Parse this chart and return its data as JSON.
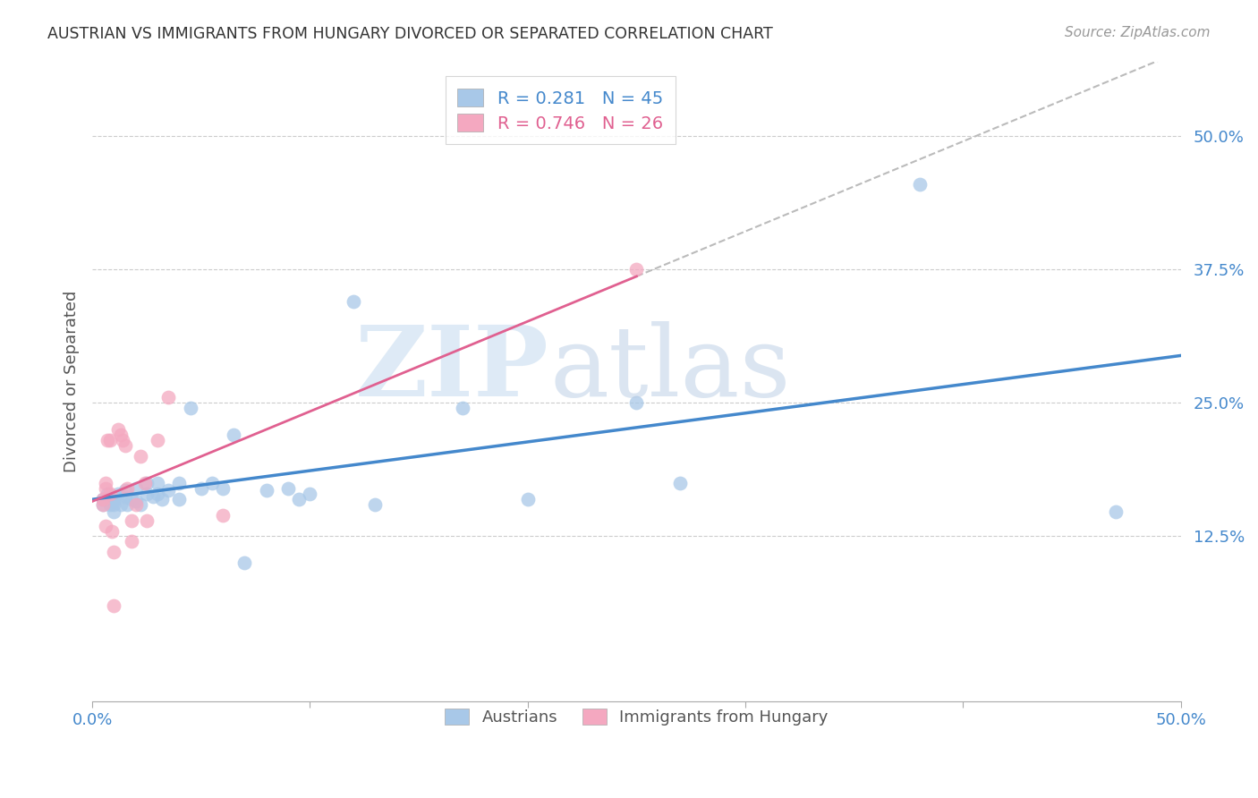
{
  "title": "AUSTRIAN VS IMMIGRANTS FROM HUNGARY DIVORCED OR SEPARATED CORRELATION CHART",
  "source": "Source: ZipAtlas.com",
  "ylabel": "Divorced or Separated",
  "ytick_values": [
    0.125,
    0.25,
    0.375,
    0.5
  ],
  "xlim": [
    0.0,
    0.5
  ],
  "ylim": [
    -0.03,
    0.57
  ],
  "legend_blue_r": "0.281",
  "legend_blue_n": "45",
  "legend_pink_r": "0.746",
  "legend_pink_n": "26",
  "blue_color": "#a8c8e8",
  "pink_color": "#f4a8c0",
  "blue_line_color": "#4488cc",
  "pink_line_color": "#e06090",
  "dashed_color": "#bbbbbb",
  "grid_color": "#cccccc",
  "austrians_x": [
    0.005,
    0.005,
    0.007,
    0.008,
    0.009,
    0.01,
    0.01,
    0.01,
    0.01,
    0.012,
    0.013,
    0.015,
    0.015,
    0.016,
    0.018,
    0.02,
    0.02,
    0.022,
    0.025,
    0.025,
    0.028,
    0.03,
    0.03,
    0.032,
    0.035,
    0.04,
    0.04,
    0.045,
    0.05,
    0.055,
    0.06,
    0.065,
    0.07,
    0.08,
    0.09,
    0.095,
    0.1,
    0.12,
    0.13,
    0.17,
    0.2,
    0.25,
    0.27,
    0.38,
    0.47
  ],
  "austrians_y": [
    0.16,
    0.155,
    0.165,
    0.155,
    0.158,
    0.162,
    0.155,
    0.148,
    0.158,
    0.165,
    0.155,
    0.162,
    0.168,
    0.155,
    0.16,
    0.17,
    0.158,
    0.155,
    0.175,
    0.165,
    0.162,
    0.165,
    0.175,
    0.16,
    0.168,
    0.175,
    0.16,
    0.245,
    0.17,
    0.175,
    0.17,
    0.22,
    0.1,
    0.168,
    0.17,
    0.16,
    0.165,
    0.345,
    0.155,
    0.245,
    0.16,
    0.25,
    0.175,
    0.455,
    0.148
  ],
  "hungary_x": [
    0.005,
    0.005,
    0.006,
    0.006,
    0.006,
    0.007,
    0.008,
    0.008,
    0.009,
    0.01,
    0.01,
    0.012,
    0.013,
    0.014,
    0.015,
    0.016,
    0.018,
    0.018,
    0.02,
    0.022,
    0.024,
    0.025,
    0.03,
    0.035,
    0.06,
    0.25
  ],
  "hungary_y": [
    0.16,
    0.155,
    0.17,
    0.135,
    0.175,
    0.215,
    0.215,
    0.165,
    0.13,
    0.11,
    0.06,
    0.225,
    0.22,
    0.215,
    0.21,
    0.17,
    0.14,
    0.12,
    0.155,
    0.2,
    0.175,
    0.14,
    0.215,
    0.255,
    0.145,
    0.375
  ]
}
